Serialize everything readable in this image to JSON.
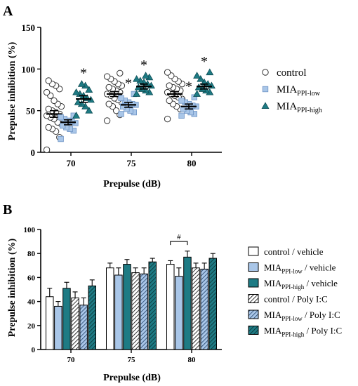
{
  "chart_data": [
    {
      "panel_label": "A",
      "type": "scatter",
      "ylabel": "Prepulse inhibition (%)",
      "xlabel": "Prepulse (dB)",
      "categories": [
        "70",
        "75",
        "80"
      ],
      "ylim": [
        0,
        150
      ],
      "yticks": [
        "0",
        "50",
        "100",
        "150"
      ],
      "grid": false,
      "legend_position": "right",
      "legend": [
        {
          "base": "control",
          "sub": "",
          "marker": "circle",
          "color": "#ffffff"
        },
        {
          "base": "MIA",
          "sub": "PPI-low",
          "marker": "square",
          "color": "#a9c6e8"
        },
        {
          "base": "MIA",
          "sub": "PPI-high",
          "marker": "triangle",
          "color": "#1e7b84"
        }
      ],
      "series": [
        {
          "name": "control",
          "means": [
            46,
            70,
            70
          ],
          "sem": [
            4,
            3,
            3
          ],
          "significance": [
            "",
            "",
            ""
          ],
          "points": [
            [
              3,
              18,
              25,
              28,
              30,
              34,
              36,
              40,
              42,
              44,
              46,
              48,
              50,
              52,
              55,
              58,
              62,
              68,
              72,
              76,
              80,
              82,
              86
            ],
            [
              38,
              45,
              50,
              55,
              58,
              60,
              63,
              65,
              68,
              70,
              72,
              74,
              76,
              78,
              80,
              82,
              85,
              88,
              91,
              95
            ],
            [
              40,
              52,
              55,
              58,
              62,
              64,
              66,
              68,
              70,
              72,
              74,
              76,
              78,
              80,
              82,
              85,
              88,
              92,
              96
            ]
          ]
        },
        {
          "name": "MIA PPI-low",
          "means": [
            36,
            57,
            55
          ],
          "sem": [
            3,
            3,
            3
          ],
          "significance": [
            "",
            "*",
            "*"
          ],
          "points": [
            [
              16,
              26,
              28,
              30,
              32,
              35,
              37,
              38,
              40,
              42,
              44
            ],
            [
              46,
              48,
              50,
              52,
              55,
              57,
              58,
              60,
              62,
              65,
              70
            ],
            [
              44,
              46,
              48,
              50,
              52,
              55,
              56,
              58,
              60,
              62,
              66
            ]
          ]
        },
        {
          "name": "MIA PPI-high",
          "means": [
            64,
            79,
            79
          ],
          "sem": [
            4,
            3,
            3
          ],
          "significance": [
            "*",
            "*",
            "*"
          ],
          "points": [
            [
              44,
              50,
              55,
              58,
              60,
              63,
              65,
              68,
              70,
              72,
              75,
              80,
              82
            ],
            [
              70,
              72,
              74,
              76,
              78,
              80,
              82,
              84,
              86,
              88,
              90,
              92
            ],
            [
              70,
              72,
              74,
              76,
              78,
              80,
              82,
              84,
              88,
              92,
              96
            ]
          ]
        }
      ]
    },
    {
      "panel_label": "B",
      "type": "bar",
      "ylabel": "Prepulse inhibition (%)",
      "xlabel": "Prepulse (dB)",
      "categories": [
        "70",
        "75",
        "80"
      ],
      "ylim": [
        0,
        100
      ],
      "yticks": [
        "0",
        "20",
        "40",
        "60",
        "80",
        "100"
      ],
      "grid": false,
      "legend_position": "right",
      "annotation": "#",
      "series": [
        {
          "base": "control",
          "sub": "",
          "suffix": " / vehicle",
          "fill": "#ffffff",
          "hatch": false,
          "values": [
            44,
            68,
            71
          ],
          "err": [
            7,
            4,
            3
          ]
        },
        {
          "base": "MIA",
          "sub": "PPI-low",
          "suffix": " / vehicle",
          "fill": "#a9c6e8",
          "hatch": false,
          "values": [
            36,
            62,
            61
          ],
          "err": [
            4,
            6,
            7
          ]
        },
        {
          "base": "MIA",
          "sub": "PPI-high",
          "suffix": " / vehicle",
          "fill": "#1e7b84",
          "hatch": false,
          "values": [
            51,
            71,
            77
          ],
          "err": [
            5,
            4,
            5
          ]
        },
        {
          "base": "control",
          "sub": "",
          "suffix": " / Poly I:C",
          "fill": "#ffffff",
          "hatch": true,
          "values": [
            43,
            64,
            68
          ],
          "err": [
            5,
            4,
            4
          ]
        },
        {
          "base": "MIA",
          "sub": "PPI-low",
          "suffix": " / Poly I:C",
          "fill": "#a9c6e8",
          "hatch": true,
          "values": [
            37,
            63,
            67
          ],
          "err": [
            6,
            5,
            5
          ]
        },
        {
          "base": "MIA",
          "sub": "PPI-high",
          "suffix": " / Poly I:C",
          "fill": "#1e7b84",
          "hatch": true,
          "values": [
            53,
            73,
            76
          ],
          "err": [
            5,
            3,
            4
          ]
        }
      ]
    }
  ]
}
